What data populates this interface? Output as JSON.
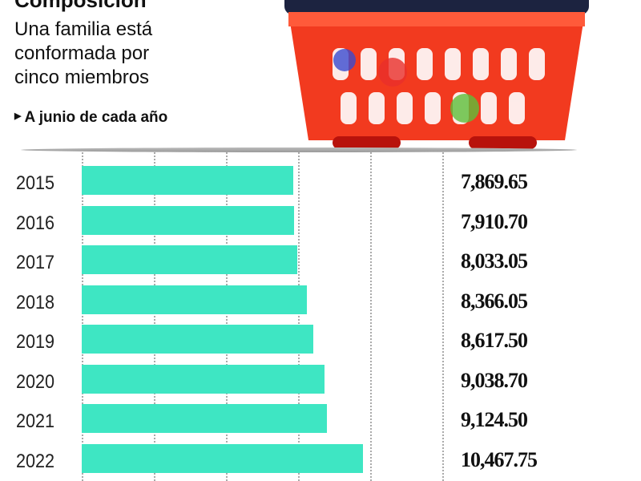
{
  "header": {
    "title": "Composición",
    "subtitle": "Una familia está conformada por cinco miembros",
    "note": "A junio de cada año"
  },
  "colors": {
    "bar": "#3ee6c3",
    "basket": "#f23a1f"
  },
  "chart_data": {
    "type": "bar",
    "orientation": "horizontal",
    "title": "Composición",
    "subtitle": "Una familia está conformada por cinco miembros",
    "annotation": "A junio de cada año",
    "categories": [
      "2015",
      "2016",
      "2017",
      "2018",
      "2019",
      "2020",
      "2021",
      "2022"
    ],
    "values": [
      7869.65,
      7910.7,
      8033.05,
      8366.05,
      8617.5,
      9038.7,
      9124.5,
      10467.75
    ],
    "labels": [
      "7,869.65",
      "7,910.70",
      "8,033.05",
      "8,366.05",
      "8,617.50",
      "9,038.70",
      "9,124.50",
      "10,467.75"
    ],
    "xlim": [
      0,
      13500
    ],
    "grid": true
  }
}
